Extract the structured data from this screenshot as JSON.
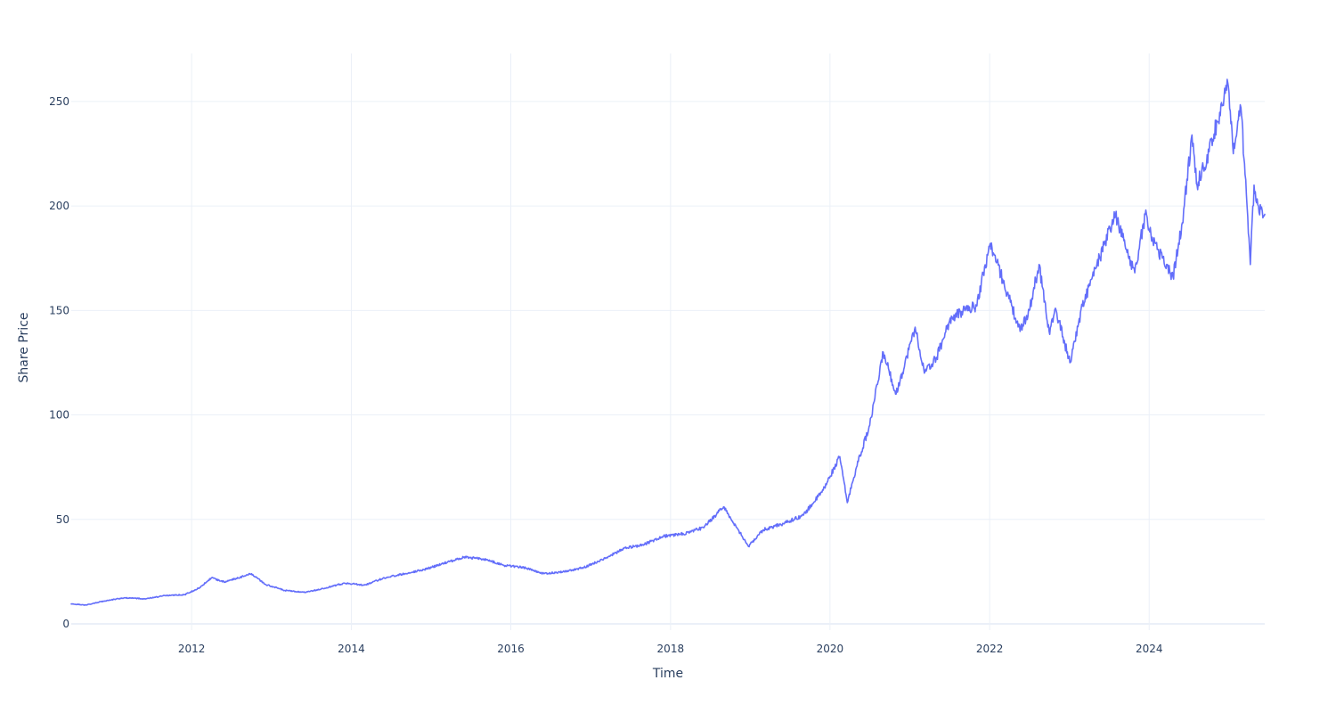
{
  "chart_data": {
    "type": "line",
    "title": "",
    "xlabel": "Time",
    "ylabel": "Share Price",
    "x_tick_labels": [
      "2012",
      "2014",
      "2016",
      "2018",
      "2020",
      "2022",
      "2024"
    ],
    "y_tick_labels": [
      "0",
      "50",
      "100",
      "150",
      "200",
      "250"
    ],
    "xlim": [
      "2010-06-29",
      "2025-06-13"
    ],
    "ylim": [
      -3,
      273
    ],
    "grid": true,
    "legend": "none",
    "colors": {
      "line": "#636efa",
      "grid": "#ebf0f8",
      "text": "#2a3f5f",
      "background": "#ffffff"
    },
    "series": [
      {
        "color": "#636efa",
        "x": [
          "2010-06-29",
          "2010-09-01",
          "2010-12-01",
          "2011-03-01",
          "2011-06-01",
          "2011-09-01",
          "2011-12-01",
          "2012-02-01",
          "2012-04-01",
          "2012-06-01",
          "2012-08-01",
          "2012-10-01",
          "2012-12-01",
          "2013-03-01",
          "2013-06-01",
          "2013-09-01",
          "2013-12-01",
          "2014-03-01",
          "2014-06-01",
          "2014-09-01",
          "2014-12-01",
          "2015-03-01",
          "2015-06-01",
          "2015-09-01",
          "2015-12-01",
          "2016-03-01",
          "2016-06-01",
          "2016-09-01",
          "2016-12-01",
          "2017-03-01",
          "2017-06-01",
          "2017-09-01",
          "2017-12-01",
          "2018-03-01",
          "2018-06-01",
          "2018-09-01",
          "2018-11-01",
          "2018-12-24",
          "2019-03-01",
          "2019-06-01",
          "2019-09-01",
          "2019-12-01",
          "2020-02-15",
          "2020-03-20",
          "2020-05-01",
          "2020-07-01",
          "2020-09-01",
          "2020-10-30",
          "2021-01-25",
          "2021-03-08",
          "2021-05-01",
          "2021-07-01",
          "2021-09-01",
          "2021-11-01",
          "2022-01-03",
          "2022-03-01",
          "2022-05-20",
          "2022-07-01",
          "2022-08-15",
          "2022-09-30",
          "2022-11-01",
          "2023-01-03",
          "2023-03-01",
          "2023-05-01",
          "2023-07-31",
          "2023-09-01",
          "2023-10-27",
          "2023-12-14",
          "2024-01-15",
          "2024-03-01",
          "2024-04-19",
          "2024-06-01",
          "2024-07-15",
          "2024-08-07",
          "2024-10-01",
          "2024-12-26",
          "2025-01-20",
          "2025-02-24",
          "2025-03-15",
          "2025-04-08",
          "2025-04-25",
          "2025-05-15",
          "2025-06-13"
        ],
        "y": [
          9.5,
          9.0,
          11.0,
          12.5,
          12.0,
          13.5,
          14.0,
          17.0,
          22.0,
          20.0,
          22.0,
          24.0,
          19.0,
          16.0,
          15.0,
          17.0,
          19.5,
          18.5,
          22.0,
          24.0,
          26.0,
          29.0,
          32.0,
          31.0,
          28.0,
          27.0,
          24.0,
          25.0,
          27.0,
          31.0,
          36.0,
          38.0,
          42.0,
          43.0,
          46.0,
          56.0,
          46.0,
          37.0,
          45.0,
          48.0,
          52.0,
          64.0,
          80.0,
          58.0,
          75.0,
          95.0,
          130.0,
          110.0,
          142.0,
          120.0,
          127.0,
          145.0,
          150.0,
          152.0,
          182.0,
          165.0,
          140.0,
          150.0,
          172.0,
          140.0,
          150.0,
          125.0,
          152.0,
          170.0,
          196.0,
          185.0,
          168.0,
          196.0,
          185.0,
          175.0,
          166.0,
          192.0,
          234.0,
          210.0,
          226.0,
          259.0,
          225.0,
          247.0,
          215.0,
          172.0,
          210.0,
          200.0,
          196.0
        ]
      }
    ]
  }
}
